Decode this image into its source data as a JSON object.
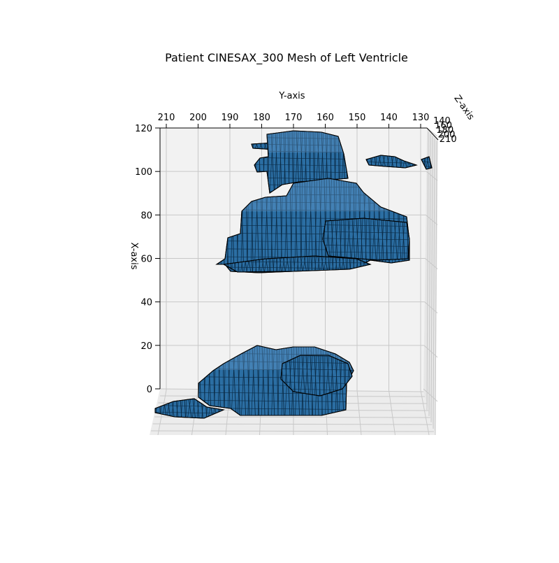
{
  "chart_data": {
    "type": "surface3d",
    "title": "Patient CINESAX_300 Mesh of Left Ventricle",
    "xlabel": "X-axis",
    "ylabel": "Y-axis",
    "zlabel": "Z-axis",
    "x_ticks": [
      "0",
      "20",
      "40",
      "60",
      "80",
      "100",
      "120"
    ],
    "y_ticks": [
      "210",
      "200",
      "190",
      "180",
      "170",
      "160",
      "150",
      "140",
      "130"
    ],
    "z_ticks": [
      "140",
      "160",
      "180",
      "200",
      "210"
    ],
    "xlim": [
      0,
      120
    ],
    "ylim": [
      210,
      128
    ],
    "zlim": [
      140,
      210
    ],
    "grid": true,
    "mesh_face_color": "#2b6ea3",
    "mesh_edge_color": "#000000",
    "pane_color": "#f2f2f2",
    "grid_color": "#c8c8c8"
  }
}
